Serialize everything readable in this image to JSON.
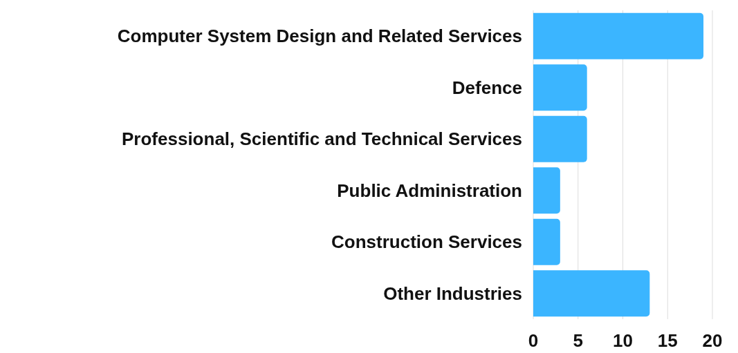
{
  "chart_data": {
    "type": "bar",
    "orientation": "horizontal",
    "categories": [
      "Computer System Design and Related Services",
      "Defence",
      "Professional, Scientific and Technical Services",
      "Public Administration",
      "Construction Services",
      "Other Industries"
    ],
    "values": [
      19,
      6,
      6,
      3,
      3,
      13
    ],
    "color": "#3bb5ff",
    "xlim": [
      0,
      20
    ],
    "xticks": [
      0,
      5,
      10,
      15,
      20
    ],
    "grid": "x"
  }
}
